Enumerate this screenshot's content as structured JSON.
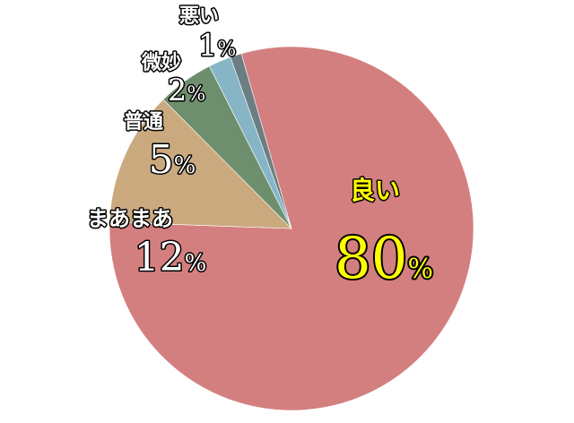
{
  "chart_data": {
    "type": "pie",
    "start_angle_deg": -16,
    "direction": "clockwise",
    "slices": [
      {
        "label": "良い",
        "value": 80,
        "pct_text": "80",
        "color": "#d47f7f",
        "label_color": "#ffff00"
      },
      {
        "label": "まあまあ",
        "value": 12,
        "pct_text": "12",
        "color": "#cba97f",
        "label_color": "#ffffff"
      },
      {
        "label": "普通",
        "value": 5,
        "pct_text": "5",
        "color": "#6e8f6d",
        "label_color": "#ffffff"
      },
      {
        "label": "微妙",
        "value": 2,
        "pct_text": "2",
        "color": "#86b6c6",
        "label_color": "#ffffff"
      },
      {
        "label": "悪い",
        "value": 1,
        "pct_text": "1",
        "color": "#6d7d84",
        "label_color": "#ffffff"
      }
    ],
    "percent_sign": "%"
  }
}
